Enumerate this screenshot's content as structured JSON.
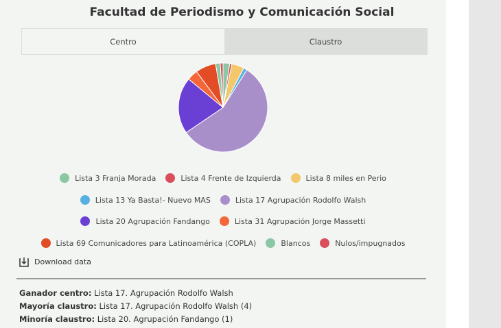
{
  "title": "Facultad de Periodismo y Comunicación Social",
  "tabs": [
    {
      "label": "Centro",
      "active": true
    },
    {
      "label": "Claustro",
      "active": false
    }
  ],
  "chart_data": {
    "type": "pie",
    "labels": [
      "Lista 3 Franja Morada",
      "Lista 4 Frente de Izquierda",
      "Lista 8 miles en Perio",
      "Lista 13 Ya Basta!- Nuevo MAS",
      "Lista 17 Agrupación Rodolfo Walsh",
      "Lista 20 Agrupación Fandango",
      "Lista 31 Agrupación Jorge Massetti",
      "Lista 69 Comunicadores para Latinoamérica (COPLA)",
      "Blancos",
      "Nulos/impugnados"
    ],
    "values": [
      2.4,
      0.8,
      4.5,
      1.3,
      56.5,
      20.5,
      3.9,
      7.4,
      1.7,
      1.0
    ],
    "colors": [
      "#8bc7a2",
      "#d94f5c",
      "#f2c86b",
      "#56b1e0",
      "#a98fca",
      "#6a3fd4",
      "#f3673b",
      "#e24d26",
      "#8bc7a2",
      "#d94f5c"
    ]
  },
  "download_label": "Download data",
  "results": [
    {
      "label": "Ganador centro:",
      "value": " Lista 17. Agrupación Rodolfo Walsh"
    },
    {
      "label": "Mayoría claustro:",
      "value": "  Lista 17. Agrupación Rodolfo Walsh (4)"
    },
    {
      "label": "Minoría claustro:",
      "value": "  Lista 20. Agrupación Fandango (1)"
    }
  ]
}
